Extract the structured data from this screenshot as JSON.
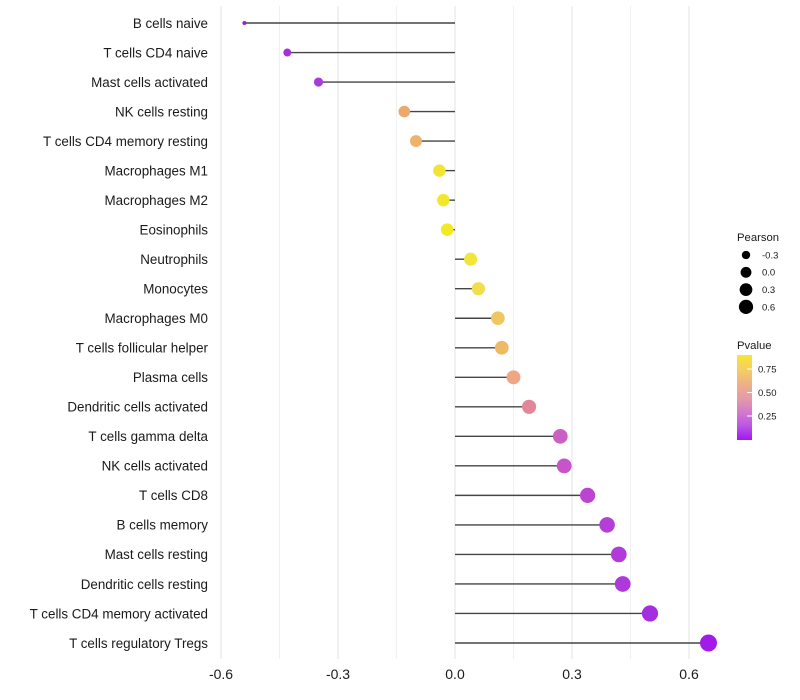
{
  "chart_data": {
    "type": "lollipop",
    "title": "",
    "xlabel": "",
    "ylabel": "",
    "x_tick_labels": [
      "-0.6",
      "-0.3",
      "0.0",
      "0.3",
      "0.6"
    ],
    "x_tick_values": [
      -0.6,
      -0.3,
      0.0,
      0.3,
      0.6
    ],
    "xlim": [
      -0.66,
      0.73
    ],
    "grid": "vertical-only",
    "grid_minor_step": 0.15,
    "legend_position": "right",
    "points": [
      {
        "category": "B cells naive",
        "pearson": -0.54,
        "color": "#8E24D8"
      },
      {
        "category": "T cells CD4 naive",
        "pearson": -0.43,
        "color": "#A233D6"
      },
      {
        "category": "Mast cells activated",
        "pearson": -0.35,
        "color": "#A83CDA"
      },
      {
        "category": "NK cells resting",
        "pearson": -0.13,
        "color": "#EDA96B"
      },
      {
        "category": "T cells CD4 memory resting",
        "pearson": -0.1,
        "color": "#EFB269"
      },
      {
        "category": "Macrophages M1",
        "pearson": -0.04,
        "color": "#F2E435"
      },
      {
        "category": "Macrophages M2",
        "pearson": -0.03,
        "color": "#F3E72C"
      },
      {
        "category": "Eosinophils",
        "pearson": -0.02,
        "color": "#F4E923"
      },
      {
        "category": "Neutrophils",
        "pearson": 0.04,
        "color": "#F2E53B"
      },
      {
        "category": "Monocytes",
        "pearson": 0.06,
        "color": "#F1DE4F"
      },
      {
        "category": "Macrophages M0",
        "pearson": 0.11,
        "color": "#EFC75E"
      },
      {
        "category": "T cells follicular helper",
        "pearson": 0.12,
        "color": "#F0B964"
      },
      {
        "category": "Plasma cells",
        "pearson": 0.15,
        "color": "#F0A583"
      },
      {
        "category": "Dendritic cells activated",
        "pearson": 0.19,
        "color": "#E2879B"
      },
      {
        "category": "T cells gamma delta",
        "pearson": 0.27,
        "color": "#CB5FC3"
      },
      {
        "category": "NK cells activated",
        "pearson": 0.28,
        "color": "#C754CB"
      },
      {
        "category": "T cells CD8",
        "pearson": 0.34,
        "color": "#BB45D1"
      },
      {
        "category": "B cells memory",
        "pearson": 0.39,
        "color": "#B33ED8"
      },
      {
        "category": "Mast cells resting",
        "pearson": 0.42,
        "color": "#B03BDA"
      },
      {
        "category": "Dendritic cells resting",
        "pearson": 0.43,
        "color": "#AD38DC"
      },
      {
        "category": "T cells CD4 memory activated",
        "pearson": 0.5,
        "color": "#A52FDF"
      },
      {
        "category": "T cells regulatory  Tregs",
        "pearson": 0.65,
        "color": "#A21BE9"
      }
    ],
    "legend_size": {
      "title": "Pearson",
      "dot_color": "#000000",
      "entries": [
        {
          "label": "-0.3",
          "value": -0.3
        },
        {
          "label": "0.0",
          "value": 0.0
        },
        {
          "label": "0.3",
          "value": 0.3
        },
        {
          "label": "0.6",
          "value": 0.6
        }
      ]
    },
    "legend_color": {
      "title": "Pvalue",
      "tick_labels": [
        "0.75",
        "0.50",
        "0.25"
      ],
      "tick_values": [
        0.75,
        0.5,
        0.25
      ],
      "gradient_stops": [
        "#F8E632",
        "#F5CE63",
        "#EFB285",
        "#E59CA6",
        "#D47BCA",
        "#BC55E5",
        "#A117F2"
      ]
    },
    "colors": {
      "stem": "#454545",
      "grid_major": "#e3e3e3",
      "grid_minor": "#f0f0f0",
      "text": "#1a1a1a",
      "background": "#ffffff"
    }
  }
}
